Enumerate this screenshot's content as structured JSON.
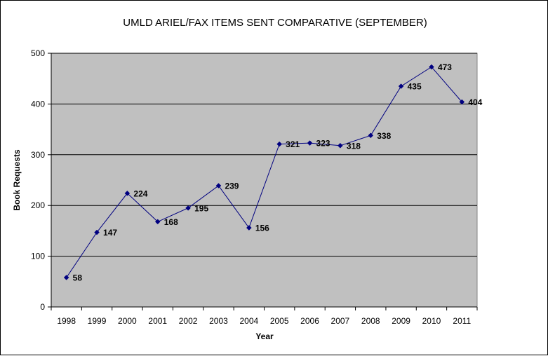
{
  "chart_data": {
    "type": "line",
    "title": "UMLD ARIEL/FAX ITEMS SENT COMPARATIVE (SEPTEMBER)",
    "xlabel": "Year",
    "ylabel": "Book Requests",
    "categories": [
      "1998",
      "1999",
      "2000",
      "2001",
      "2002",
      "2003",
      "2004",
      "2005",
      "2006",
      "2007",
      "2008",
      "2009",
      "2010",
      "2011"
    ],
    "series": [
      {
        "values": [
          58,
          147,
          224,
          168,
          195,
          239,
          156,
          321,
          323,
          318,
          338,
          435,
          473,
          404
        ]
      }
    ],
    "data_labels": [
      "58",
      "147",
      "224",
      "168",
      "195",
      "239",
      "156",
      "321",
      "323",
      "318",
      "338",
      "435",
      "473",
      "404"
    ],
    "ylim": [
      0,
      500
    ],
    "yticks": [
      "0",
      "100",
      "200",
      "300",
      "400",
      "500"
    ],
    "grid": true,
    "legend": "none",
    "colors": {
      "plot_background": "#c0c0c0",
      "line": "#000080",
      "marker": "#000080",
      "gridline": "#000000"
    }
  }
}
